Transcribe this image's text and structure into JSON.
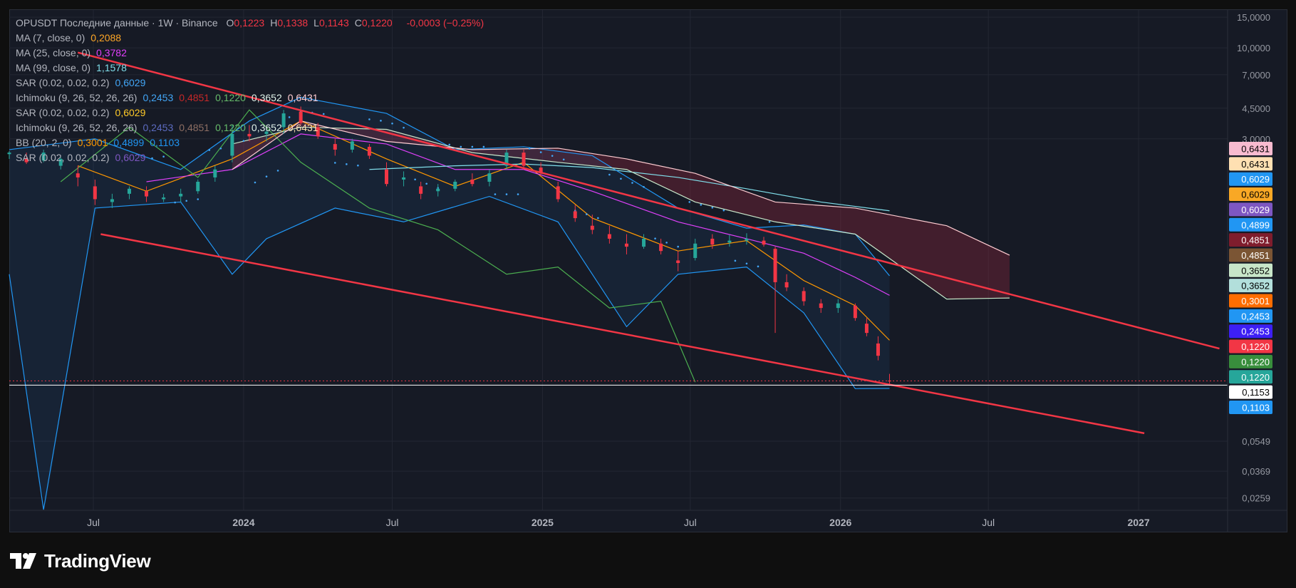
{
  "header": {
    "symbol_line": "OPUSDT Последние данные · 1W · Binance",
    "ohlc": [
      {
        "k": "O",
        "v": "0,1223"
      },
      {
        "k": "H",
        "v": "0,1338"
      },
      {
        "k": "L",
        "v": "0,1143"
      },
      {
        "k": "C",
        "v": "0,1220"
      }
    ],
    "change": "-0,0003 (−0.25%)"
  },
  "indicators": [
    {
      "label": "MA (7, close, 0)",
      "values": [
        {
          "text": "0,2088",
          "color": "#ffa726"
        }
      ]
    },
    {
      "label": "MA (25, close, 0)",
      "values": [
        {
          "text": "0,3782",
          "color": "#e040fb"
        }
      ]
    },
    {
      "label": "MA (99, close, 0)",
      "values": [
        {
          "text": "1,1578",
          "color": "#80deea"
        }
      ]
    },
    {
      "label": "SAR (0.02, 0.02, 0.2)",
      "values": [
        {
          "text": "0,6029",
          "color": "#42a5f5"
        }
      ]
    },
    {
      "label": "Ichimoku (9, 26, 52, 26, 26)",
      "values": [
        {
          "text": "0,2453",
          "color": "#42a5f5"
        },
        {
          "text": "0,4851",
          "color": "#c62828"
        },
        {
          "text": "0,1220",
          "color": "#66bb6a"
        },
        {
          "text": "0,3652",
          "color": "#e0f2e9"
        },
        {
          "text": "0,6431",
          "color": "#ffcdd2"
        }
      ]
    },
    {
      "label": "SAR (0.02, 0.02, 0.2)",
      "values": [
        {
          "text": "0,6029",
          "color": "#ffca28"
        }
      ]
    },
    {
      "label": "Ichimoku (9, 26, 52, 26, 26)",
      "values": [
        {
          "text": "0,2453",
          "color": "#5c6bc0"
        },
        {
          "text": "0,4851",
          "color": "#8d6e63"
        },
        {
          "text": "0,1220",
          "color": "#66bb6a"
        },
        {
          "text": "0,3652",
          "color": "#e0f2e9"
        },
        {
          "text": "0,6431",
          "color": "#ffe0b2"
        }
      ]
    },
    {
      "label": "BB (20, 2, 0)",
      "values": [
        {
          "text": "0,3001",
          "color": "#ff9800"
        },
        {
          "text": "0,4899",
          "color": "#2196f3"
        },
        {
          "text": "0,1103",
          "color": "#2196f3"
        }
      ]
    },
    {
      "label": "SAR (0.02, 0.02, 0.2)",
      "values": [
        {
          "text": "0,6029",
          "color": "#7e57c2"
        }
      ]
    }
  ],
  "footer": {
    "brand": "TradingView"
  },
  "chart_data": {
    "type": "candlestick",
    "title": "OPUSDT · 1W · Binance",
    "y_scale": "log",
    "y_ticks": [
      "15,0000",
      "10,0000",
      "7,0000",
      "4,5000",
      "3,0000",
      "0,0549",
      "0,0369",
      "0,0259"
    ],
    "y_tick_values": [
      15,
      10,
      7,
      4.5,
      3,
      0.0549,
      0.0369,
      0.0259
    ],
    "x_ticks": [
      "Jul",
      "2024",
      "Jul",
      "2025",
      "Jul",
      "2026",
      "Jul",
      "2027"
    ],
    "x_tick_dates": [
      "2023-07-01",
      "2024-01-01",
      "2024-07-01",
      "2025-01-01",
      "2025-07-01",
      "2026-01-01",
      "2026-07-01",
      "2027-01-01"
    ],
    "x_range": [
      "2023-03-20",
      "2027-04-20"
    ],
    "y_range": [
      0.022,
      16.5
    ],
    "last_close": 0.122,
    "price_labels": [
      {
        "text": "0,6431",
        "value": 0.6431,
        "bg": "#f8bbd0",
        "fg": "#000000"
      },
      {
        "text": "0,6431",
        "value": 0.6431,
        "bg": "#ffe0b2",
        "fg": "#000000"
      },
      {
        "text": "0,6029",
        "value": 0.6029,
        "bg": "#2196f3",
        "fg": "#ffffff"
      },
      {
        "text": "0,6029",
        "value": 0.6029,
        "bg": "#f9a825",
        "fg": "#000000"
      },
      {
        "text": "0,6029",
        "value": 0.6029,
        "bg": "#7e57c2",
        "fg": "#ffffff"
      },
      {
        "text": "0,4899",
        "value": 0.4899,
        "bg": "#2196f3",
        "fg": "#ffffff"
      },
      {
        "text": "0,4851",
        "value": 0.4851,
        "bg": "#7f1d2d",
        "fg": "#ffffff"
      },
      {
        "text": "0,4851",
        "value": 0.4851,
        "bg": "#7b5534",
        "fg": "#ffffff"
      },
      {
        "text": "0,3652",
        "value": 0.3652,
        "bg": "#c8e6c9",
        "fg": "#000000"
      },
      {
        "text": "0,3652",
        "value": 0.3652,
        "bg": "#b2dfdb",
        "fg": "#000000"
      },
      {
        "text": "0,3001",
        "value": 0.3001,
        "bg": "#ff6d00",
        "fg": "#ffffff"
      },
      {
        "text": "0,2453",
        "value": 0.2453,
        "bg": "#2196f3",
        "fg": "#ffffff"
      },
      {
        "text": "0,2453",
        "value": 0.2453,
        "bg": "#3d1ff5",
        "fg": "#ffffff"
      },
      {
        "text": "0,1220",
        "value": 0.122,
        "bg": "#f23645",
        "fg": "#ffffff"
      },
      {
        "text": "0,1220",
        "value": 0.122,
        "bg": "#388e3c",
        "fg": "#ffffff"
      },
      {
        "text": "0,1220",
        "value": 0.122,
        "bg": "#26a69a",
        "fg": "#ffffff"
      },
      {
        "text": "0,1153",
        "value": 0.1153,
        "bg": "#ffffff",
        "fg": "#000000"
      },
      {
        "text": "0,1103",
        "value": 0.1103,
        "bg": "#2196f3",
        "fg": "#ffffff"
      }
    ],
    "trendlines": [
      {
        "from": [
          "2023-06-12",
          9.4
        ],
        "to": [
          "2027-04-10",
          0.187
        ]
      },
      {
        "from": [
          "2023-07-10",
          0.85
        ],
        "to": [
          "2027-01-08",
          0.061
        ]
      }
    ],
    "candles": [
      [
        "2023-03-20",
        2.45,
        2.55,
        2.3,
        2.5
      ],
      [
        "2023-04-10",
        2.3,
        2.5,
        2.15,
        2.2
      ],
      [
        "2023-05-01",
        2.25,
        2.6,
        2.2,
        2.5
      ],
      [
        "2023-05-22",
        2.1,
        2.35,
        2.0,
        2.3
      ],
      [
        "2023-06-12",
        1.9,
        2.1,
        1.6,
        1.8
      ],
      [
        "2023-07-03",
        1.6,
        1.75,
        1.25,
        1.35
      ],
      [
        "2023-07-24",
        1.3,
        1.45,
        1.2,
        1.35
      ],
      [
        "2023-08-14",
        1.45,
        1.6,
        1.35,
        1.55
      ],
      [
        "2023-09-04",
        1.5,
        1.6,
        1.3,
        1.4
      ],
      [
        "2023-09-25",
        1.35,
        1.45,
        1.3,
        1.38
      ],
      [
        "2023-10-16",
        1.4,
        1.55,
        1.3,
        1.45
      ],
      [
        "2023-11-06",
        1.5,
        1.75,
        1.45,
        1.7
      ],
      [
        "2023-11-27",
        1.8,
        2.1,
        1.7,
        2.0
      ],
      [
        "2023-12-18",
        2.4,
        3.6,
        2.2,
        3.2
      ],
      [
        "2024-01-08",
        3.2,
        3.6,
        2.9,
        3.1
      ],
      [
        "2024-01-29",
        3.2,
        3.4,
        2.9,
        3.3
      ],
      [
        "2024-02-19",
        3.5,
        4.4,
        3.2,
        4.2
      ],
      [
        "2024-03-11",
        4.3,
        4.6,
        3.6,
        3.7
      ],
      [
        "2024-04-01",
        3.5,
        3.7,
        3.0,
        3.1
      ],
      [
        "2024-04-22",
        2.8,
        3.0,
        2.4,
        2.6
      ],
      [
        "2024-05-13",
        2.6,
        3.0,
        2.5,
        2.9
      ],
      [
        "2024-06-03",
        2.7,
        2.8,
        2.3,
        2.4
      ],
      [
        "2024-06-24",
        2.0,
        2.2,
        1.6,
        1.65
      ],
      [
        "2024-07-15",
        1.75,
        1.95,
        1.6,
        1.8
      ],
      [
        "2024-08-05",
        1.6,
        1.7,
        1.35,
        1.45
      ],
      [
        "2024-08-26",
        1.5,
        1.65,
        1.4,
        1.55
      ],
      [
        "2024-09-16",
        1.55,
        1.75,
        1.5,
        1.7
      ],
      [
        "2024-10-07",
        1.75,
        1.9,
        1.6,
        1.65
      ],
      [
        "2024-10-28",
        1.7,
        2.0,
        1.6,
        1.9
      ],
      [
        "2024-11-18",
        2.1,
        2.6,
        2.0,
        2.5
      ],
      [
        "2024-12-09",
        2.5,
        2.6,
        2.0,
        2.1
      ],
      [
        "2024-12-30",
        2.05,
        2.2,
        1.85,
        1.9
      ],
      [
        "2025-01-20",
        1.6,
        1.7,
        1.3,
        1.35
      ],
      [
        "2025-02-10",
        1.15,
        1.25,
        1.0,
        1.05
      ],
      [
        "2025-03-03",
        0.95,
        1.1,
        0.85,
        0.9
      ],
      [
        "2025-03-24",
        0.85,
        0.95,
        0.75,
        0.8
      ],
      [
        "2025-04-14",
        0.75,
        0.85,
        0.65,
        0.72
      ],
      [
        "2025-05-05",
        0.72,
        0.85,
        0.7,
        0.8
      ],
      [
        "2025-05-26",
        0.75,
        0.8,
        0.65,
        0.68
      ],
      [
        "2025-06-16",
        0.6,
        0.68,
        0.52,
        0.58
      ],
      [
        "2025-07-07",
        0.62,
        0.8,
        0.6,
        0.75
      ],
      [
        "2025-07-28",
        0.8,
        0.85,
        0.7,
        0.74
      ],
      [
        "2025-08-18",
        0.76,
        0.84,
        0.72,
        0.78
      ],
      [
        "2025-09-08",
        0.78,
        0.86,
        0.74,
        0.8
      ],
      [
        "2025-09-29",
        0.78,
        0.82,
        0.72,
        0.74
      ],
      [
        "2025-10-13",
        0.7,
        0.72,
        0.23,
        0.45
      ],
      [
        "2025-10-27",
        0.45,
        0.5,
        0.4,
        0.42
      ],
      [
        "2025-11-17",
        0.4,
        0.42,
        0.33,
        0.35
      ],
      [
        "2025-12-08",
        0.34,
        0.36,
        0.3,
        0.32
      ],
      [
        "2025-12-29",
        0.32,
        0.36,
        0.3,
        0.34
      ],
      [
        "2026-01-19",
        0.33,
        0.34,
        0.27,
        0.28
      ],
      [
        "2026-02-02",
        0.26,
        0.28,
        0.22,
        0.23
      ],
      [
        "2026-02-16",
        0.2,
        0.22,
        0.16,
        0.17
      ],
      [
        "2026-03-02",
        0.1223,
        0.1338,
        0.1143,
        0.122
      ]
    ],
    "series": [
      {
        "name": "MA (7, close, 0)",
        "color": "#ff9800",
        "points": [
          [
            "2023-06-12",
            2.1
          ],
          [
            "2023-09-04",
            1.5
          ],
          [
            "2023-12-18",
            2.3
          ],
          [
            "2024-03-11",
            3.8
          ],
          [
            "2024-06-24",
            2.3
          ],
          [
            "2024-09-16",
            1.6
          ],
          [
            "2024-12-09",
            2.2
          ],
          [
            "2025-03-03",
            1.05
          ],
          [
            "2025-06-16",
            0.68
          ],
          [
            "2025-09-08",
            0.78
          ],
          [
            "2025-11-17",
            0.46
          ],
          [
            "2026-01-19",
            0.33
          ],
          [
            "2026-03-02",
            0.2088
          ]
        ]
      },
      {
        "name": "MA (25, close, 0)",
        "color": "#e040fb",
        "points": [
          [
            "2023-09-04",
            1.7
          ],
          [
            "2023-12-18",
            2.0
          ],
          [
            "2024-03-11",
            3.2
          ],
          [
            "2024-06-24",
            2.8
          ],
          [
            "2024-09-16",
            2.0
          ],
          [
            "2024-12-09",
            2.0
          ],
          [
            "2025-03-03",
            1.5
          ],
          [
            "2025-06-16",
            1.0
          ],
          [
            "2025-09-08",
            0.8
          ],
          [
            "2025-11-17",
            0.66
          ],
          [
            "2026-01-19",
            0.48
          ],
          [
            "2026-03-02",
            0.3782
          ]
        ]
      },
      {
        "name": "MA (99, close, 0)",
        "color": "#80deea",
        "points": [
          [
            "2024-06-03",
            2.0
          ],
          [
            "2024-09-16",
            2.1
          ],
          [
            "2024-12-09",
            2.15
          ],
          [
            "2025-03-03",
            2.05
          ],
          [
            "2025-06-16",
            1.8
          ],
          [
            "2025-09-08",
            1.55
          ],
          [
            "2025-12-08",
            1.3
          ],
          [
            "2026-03-02",
            1.1578
          ]
        ]
      },
      {
        "name": "BB upper",
        "color": "#2196f3",
        "points": [
          [
            "2023-03-20",
            2.6
          ],
          [
            "2023-07-03",
            3.0
          ],
          [
            "2023-10-16",
            2.0
          ],
          [
            "2024-01-08",
            3.8
          ],
          [
            "2024-03-11",
            5.2
          ],
          [
            "2024-06-24",
            4.2
          ],
          [
            "2024-09-16",
            2.6
          ],
          [
            "2024-12-09",
            2.7
          ],
          [
            "2025-03-03",
            2.4
          ],
          [
            "2025-06-16",
            1.2
          ],
          [
            "2025-09-08",
            0.92
          ],
          [
            "2025-11-17",
            0.96
          ],
          [
            "2026-01-19",
            0.85
          ],
          [
            "2026-03-02",
            0.4899
          ]
        ]
      },
      {
        "name": "BB lower",
        "color": "#2196f3",
        "points": [
          [
            "2023-03-20",
            0.5
          ],
          [
            "2023-05-01",
            0.02
          ],
          [
            "2023-07-03",
            1.2
          ],
          [
            "2023-10-16",
            1.3
          ],
          [
            "2023-12-18",
            0.5
          ],
          [
            "2024-01-29",
            0.8
          ],
          [
            "2024-04-22",
            1.2
          ],
          [
            "2024-07-15",
            1.0
          ],
          [
            "2024-10-28",
            1.4
          ],
          [
            "2025-01-20",
            1.0
          ],
          [
            "2025-04-14",
            0.25
          ],
          [
            "2025-06-16",
            0.5
          ],
          [
            "2025-09-08",
            0.55
          ],
          [
            "2025-11-17",
            0.3
          ],
          [
            "2026-01-19",
            0.11
          ],
          [
            "2026-03-02",
            0.1103
          ]
        ]
      },
      {
        "name": "Ichimoku lagging",
        "color": "#4caf50",
        "points": [
          [
            "2023-05-22",
            1.7
          ],
          [
            "2023-08-14",
            3.5
          ],
          [
            "2023-11-06",
            1.8
          ],
          [
            "2024-01-08",
            4.4
          ],
          [
            "2024-03-11",
            2.2
          ],
          [
            "2024-06-03",
            1.2
          ],
          [
            "2024-08-26",
            0.9
          ],
          [
            "2024-11-18",
            0.5
          ],
          [
            "2025-01-20",
            0.55
          ],
          [
            "2025-03-24",
            0.32
          ],
          [
            "2025-05-26",
            0.35
          ],
          [
            "2025-07-07",
            0.12
          ]
        ]
      },
      {
        "name": "Ichimoku span A",
        "color": "#c8e6c9",
        "points": [
          [
            "2023-12-18",
            2.8
          ],
          [
            "2024-03-11",
            3.5
          ],
          [
            "2024-06-24",
            3.4
          ],
          [
            "2024-10-07",
            2.5
          ],
          [
            "2025-01-20",
            2.2
          ],
          [
            "2025-04-14",
            2.0
          ],
          [
            "2025-07-07",
            1.3
          ],
          [
            "2025-10-13",
            1.0
          ],
          [
            "2026-01-19",
            0.85
          ],
          [
            "2026-05-11",
            0.36
          ],
          [
            "2026-07-27",
            0.3652
          ]
        ]
      },
      {
        "name": "Ichimoku span B",
        "color": "#ffcdd2",
        "points": [
          [
            "2023-12-18",
            2.0
          ],
          [
            "2024-03-11",
            3.8
          ],
          [
            "2024-06-24",
            2.9
          ],
          [
            "2024-10-07",
            2.6
          ],
          [
            "2025-01-20",
            2.65
          ],
          [
            "2025-04-14",
            2.3
          ],
          [
            "2025-07-07",
            1.9
          ],
          [
            "2025-10-13",
            1.3
          ],
          [
            "2026-01-19",
            1.2
          ],
          [
            "2026-05-11",
            0.95
          ],
          [
            "2026-07-27",
            0.6431
          ]
        ]
      }
    ]
  }
}
